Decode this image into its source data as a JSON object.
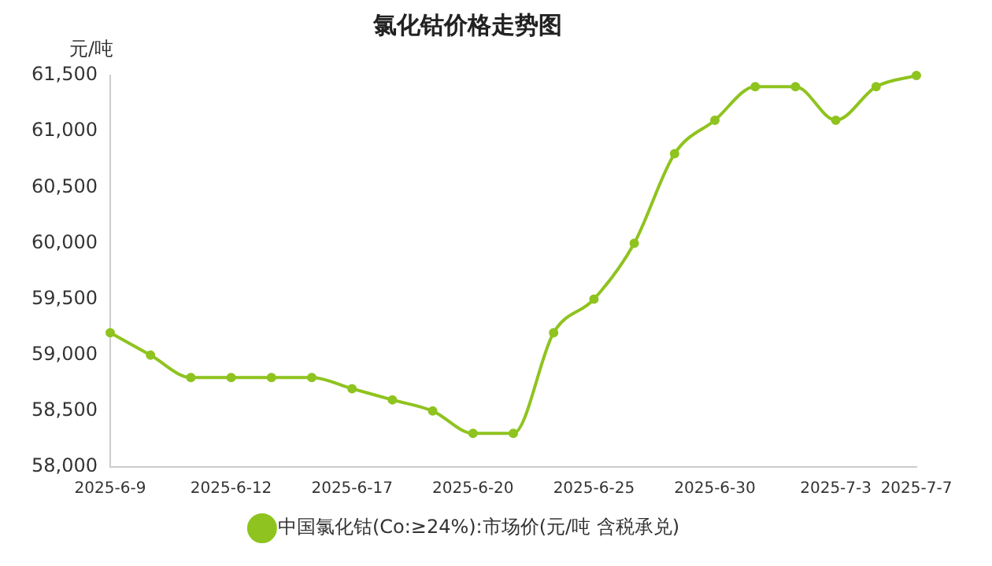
{
  "chart_data": {
    "type": "line",
    "title": "氯化钴价格走势图",
    "ylabel": "元/吨",
    "categories": [
      "2025-6-9",
      null,
      null,
      "2025-6-12",
      null,
      null,
      "2025-6-17",
      null,
      null,
      "2025-6-20",
      null,
      null,
      "2025-6-25",
      null,
      null,
      "2025-6-30",
      null,
      null,
      "2025-7-3",
      null,
      "2025-7-7"
    ],
    "series": [
      {
        "name": "中国氯化钴(Co:≥24%):市场价(元/吨 含税承兑)",
        "color": "#8fc31f",
        "values": [
          59200,
          59000,
          58800,
          58800,
          58800,
          58800,
          58700,
          58600,
          58500,
          58300,
          58300,
          59200,
          59500,
          60000,
          60800,
          61100,
          61400,
          61400,
          61100,
          61400,
          61500
        ]
      }
    ],
    "ylim": [
      58000,
      61500
    ],
    "yticks": [
      {
        "value": 58000,
        "label": "58,000"
      },
      {
        "value": 58500,
        "label": "58,500"
      },
      {
        "value": 59000,
        "label": "59,000"
      },
      {
        "value": 59500,
        "label": "59,500"
      },
      {
        "value": 60000,
        "label": "60,000"
      },
      {
        "value": 60500,
        "label": "60,500"
      },
      {
        "value": 61000,
        "label": "61,000"
      },
      {
        "value": 61500,
        "label": "61,500"
      }
    ],
    "grid": false,
    "legend": "bottom",
    "marker": "circle",
    "line_style": "solid"
  }
}
